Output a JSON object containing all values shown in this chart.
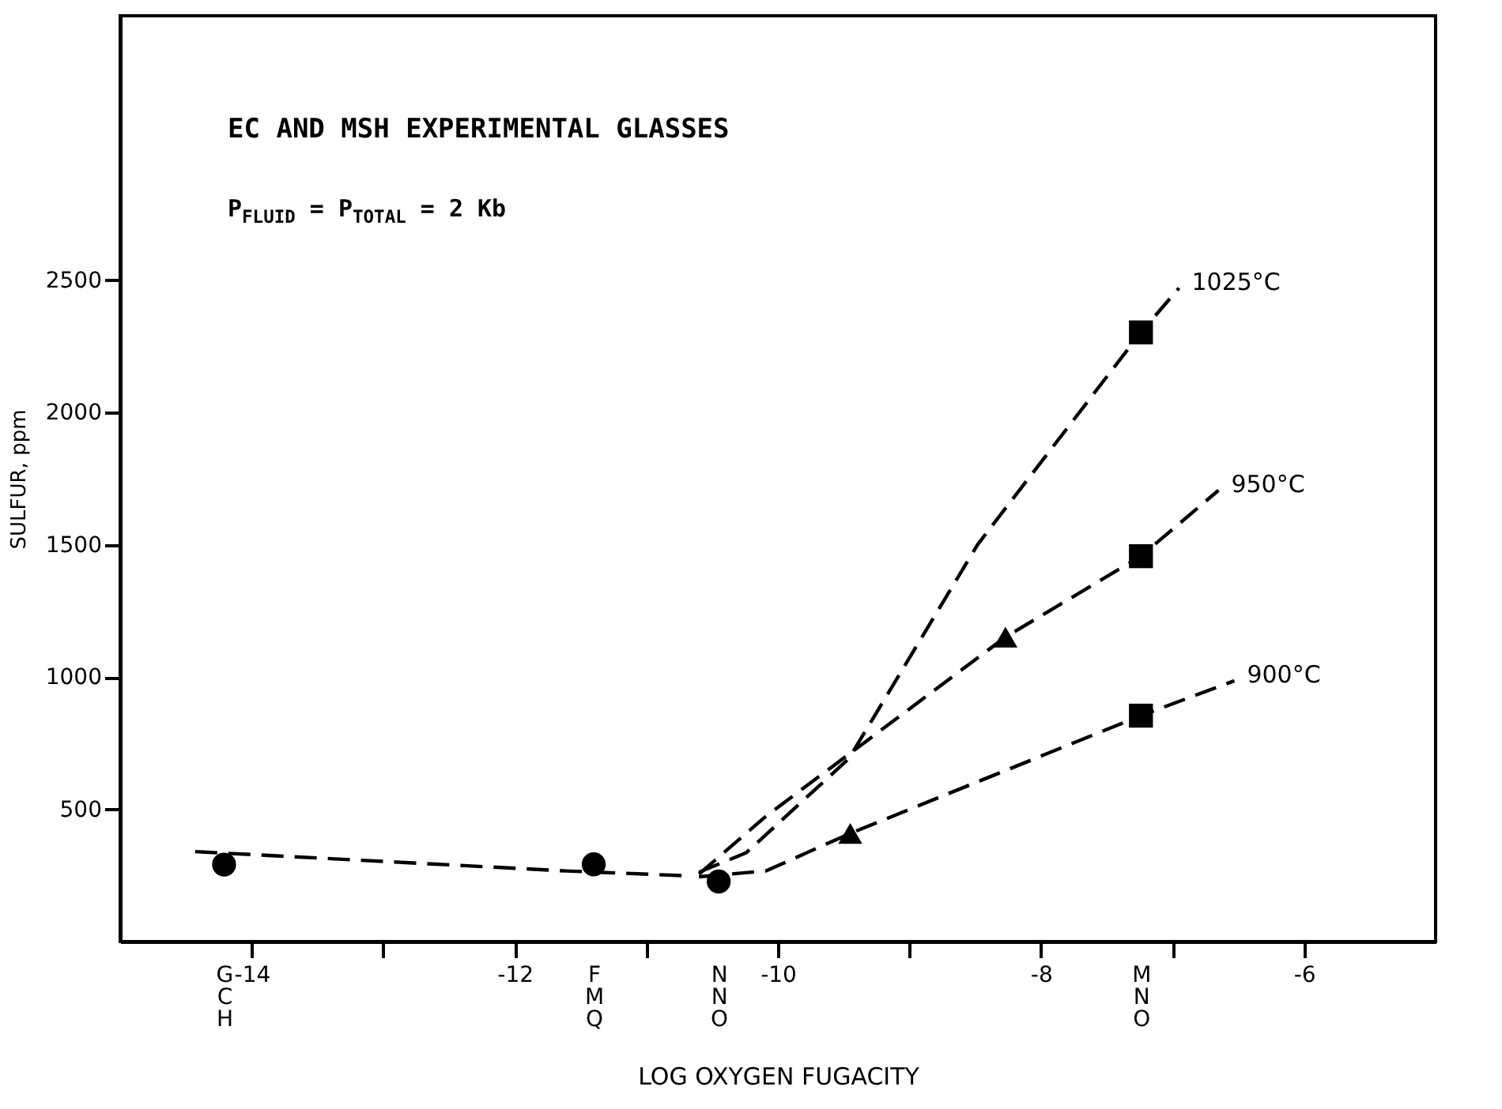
{
  "chart_data": {
    "type": "line",
    "title": "EC AND MSH EXPERIMENTAL GLASSES",
    "subtitle": "P$_{FLUID}$ = P$_{TOTAL}$ = 2 Kb",
    "xlabel": "LOG OXYGEN FUGACITY",
    "ylabel": "SULFUR, ppm",
    "xlim": [
      -15,
      -5
    ],
    "ylim": [
      0,
      3500
    ],
    "xticks": [
      -14,
      {
        "value": -13,
        "label": null
      },
      -12,
      {
        "value": -11,
        "label": null
      },
      -10,
      {
        "value": -9,
        "label": null
      },
      -8,
      {
        "value": -7,
        "label": null
      },
      -6,
      {
        "value": -14.21,
        "label": "GCH"
      },
      {
        "value": -11.4,
        "label": "FMQ"
      },
      {
        "value": -10.45,
        "label": "NNO"
      },
      {
        "value": -7.24,
        "label": "MNO"
      }
    ],
    "yticks": [
      500,
      1000,
      1500,
      2000,
      2500
    ],
    "grid": false,
    "series": [
      {
        "type": "line",
        "line_style": "dashed",
        "marker": "none",
        "color": "#000000",
        "x": [
          -14.43,
          -11.61,
          -10.71
        ],
        "values": [
          340,
          267,
          249
        ]
      },
      {
        "type": "line",
        "name": "1025°C",
        "line_style": "dashed",
        "marker": "none",
        "color": "#000000",
        "x": [
          -10.6,
          -10.24,
          -9.46,
          -8.48,
          -7.24,
          -6.95
        ],
        "values": [
          262,
          336,
          692,
          1502,
          2303,
          2471
        ]
      },
      {
        "type": "line",
        "name": "950°C",
        "line_style": "dashed",
        "marker": "none",
        "color": "#000000",
        "x": [
          -10.6,
          -10.09,
          -8.27,
          -7.24,
          -6.65
        ],
        "values": [
          255,
          474,
          1151,
          1457,
          1706
        ]
      },
      {
        "type": "line",
        "name": "900°C",
        "line_style": "dashed",
        "marker": "none",
        "color": "#000000",
        "x": [
          -10.6,
          -10.09,
          -9.45,
          -7.24,
          -6.53
        ],
        "values": [
          245,
          267,
          409,
          854,
          986
        ]
      },
      {
        "type": "scatter",
        "marker": "circle",
        "color": "#000000",
        "x": [
          -14.21,
          -11.4,
          -10.45
        ],
        "values": [
          291,
          292,
          227
        ]
      },
      {
        "type": "scatter",
        "marker": "triangle",
        "color": "#000000",
        "x": [
          -9.45,
          -8.27
        ],
        "values": [
          409,
          1151
        ]
      },
      {
        "type": "scatter",
        "marker": "square",
        "color": "#000000",
        "x": [
          -7.24,
          -7.24,
          -7.24
        ],
        "values": [
          2303,
          1457,
          854
        ]
      }
    ]
  }
}
